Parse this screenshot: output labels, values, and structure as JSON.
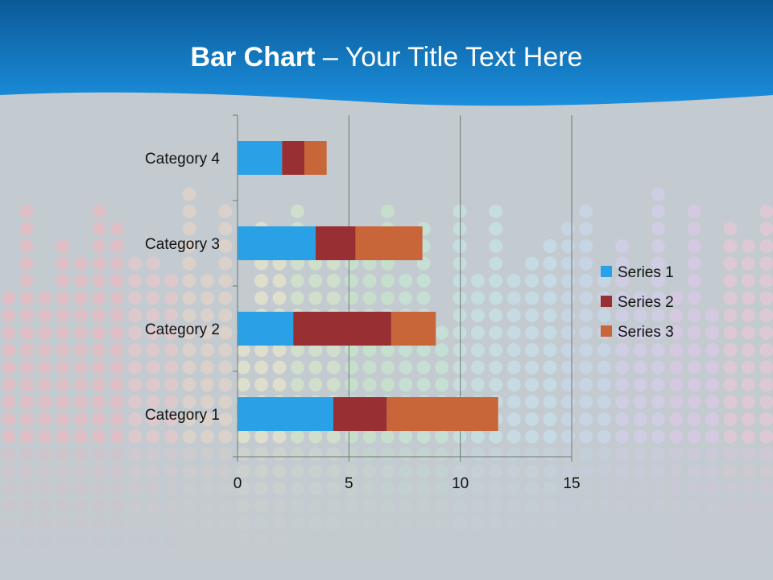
{
  "slide": {
    "title_bold": "Bar Chart",
    "title_dash": " – ",
    "title_rest": "Your Title Text Here"
  },
  "colors": {
    "header_top": "#0b5a97",
    "header_bottom": "#1b8fdd",
    "background": "#c3cad0",
    "series1": "#2aa1e6",
    "series2": "#983033",
    "series3": "#c8663a"
  },
  "chart_data": {
    "type": "bar",
    "orientation": "horizontal",
    "stacked": true,
    "categories": [
      "Category 1",
      "Category 2",
      "Category 3",
      "Category 4"
    ],
    "series": [
      {
        "name": "Series 1",
        "values": [
          4.3,
          2.5,
          3.5,
          2
        ]
      },
      {
        "name": "Series 2",
        "values": [
          2.4,
          4.4,
          1.8,
          1
        ]
      },
      {
        "name": "Series 3",
        "values": [
          5,
          2,
          3,
          1
        ]
      }
    ],
    "xlim": [
      0,
      15
    ],
    "xticks": [
      "0",
      "5",
      "10",
      "15"
    ],
    "grid": true,
    "legend": "right"
  }
}
